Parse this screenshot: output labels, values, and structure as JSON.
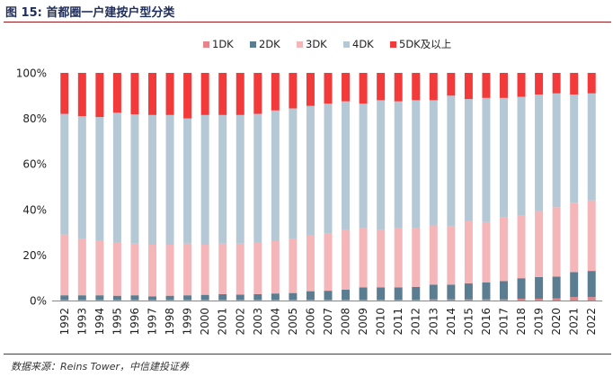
{
  "figure": {
    "title": "图 15: 首都圈一户建按户型分类",
    "source": "数据来源：Reins Tower，中信建投证券"
  },
  "chart_data": {
    "type": "bar",
    "stacked": true,
    "normalized": true,
    "title": "首都圈一户建按户型分类",
    "xlabel": "",
    "ylabel": "",
    "ylim": [
      0,
      100
    ],
    "y_ticks": [
      "0%",
      "20%",
      "40%",
      "60%",
      "80%",
      "100%"
    ],
    "legend_position": "top",
    "categories": [
      "1992",
      "1993",
      "1994",
      "1995",
      "1996",
      "1997",
      "1998",
      "1999",
      "2000",
      "2001",
      "2002",
      "2003",
      "2004",
      "2005",
      "2006",
      "2007",
      "2008",
      "2009",
      "2010",
      "2011",
      "2012",
      "2013",
      "2014",
      "2015",
      "2016",
      "2017",
      "2018",
      "2019",
      "2020",
      "2021",
      "2022"
    ],
    "series": [
      {
        "name": "1DK",
        "color": "#e6848a",
        "values": [
          0.3,
          0.3,
          0.3,
          0.3,
          0.3,
          0.3,
          0.3,
          0.3,
          0.3,
          0.3,
          0.3,
          0.3,
          0.3,
          0.3,
          0.3,
          0.3,
          0.3,
          0.3,
          0.3,
          0.3,
          0.3,
          0.5,
          0.5,
          0.5,
          0.5,
          0.5,
          0.8,
          0.8,
          1,
          1.5,
          1.5
        ]
      },
      {
        "name": "2DK",
        "color": "#5b7d91",
        "values": [
          2,
          2,
          2,
          1.8,
          2,
          1.5,
          1.8,
          2,
          2.2,
          2.5,
          2.3,
          2.5,
          2.8,
          3,
          3.8,
          4,
          4.5,
          5.5,
          5.5,
          5.5,
          5.7,
          6.5,
          6.5,
          7,
          7.5,
          8,
          9,
          9.5,
          9.5,
          11,
          11.5
        ]
      },
      {
        "name": "3DK",
        "color": "#f4b6b9",
        "values": [
          26.7,
          24.7,
          24,
          23.4,
          22.7,
          22.7,
          22.4,
          22.7,
          22,
          22.2,
          22.4,
          22.7,
          23,
          23.7,
          24.4,
          25.2,
          26.2,
          26.2,
          25.2,
          26.2,
          26,
          26,
          25.5,
          27.5,
          26.5,
          28,
          27.5,
          29,
          30.5,
          30.5,
          31
        ]
      },
      {
        "name": "4DK",
        "color": "#b5c8d6",
        "values": [
          53,
          54,
          54.3,
          57,
          56.8,
          57,
          57,
          55,
          57,
          56.5,
          56.5,
          56.5,
          57.4,
          57.4,
          57,
          57,
          56.5,
          54.5,
          57,
          55.5,
          56,
          55,
          57.5,
          53.5,
          54.5,
          52.5,
          52.2,
          51.2,
          50,
          47.5,
          47
        ]
      },
      {
        "name": "5DK及以上",
        "color": "#f23a3a",
        "values": [
          18,
          19,
          19.4,
          17.5,
          18.2,
          18.5,
          18.5,
          20,
          18.5,
          18.5,
          18.5,
          18,
          16.5,
          15.6,
          14.5,
          13.5,
          12.5,
          13.5,
          12,
          12.5,
          12,
          12,
          10,
          11.5,
          11,
          11,
          10.5,
          9.5,
          9,
          9.5,
          9
        ]
      }
    ]
  }
}
